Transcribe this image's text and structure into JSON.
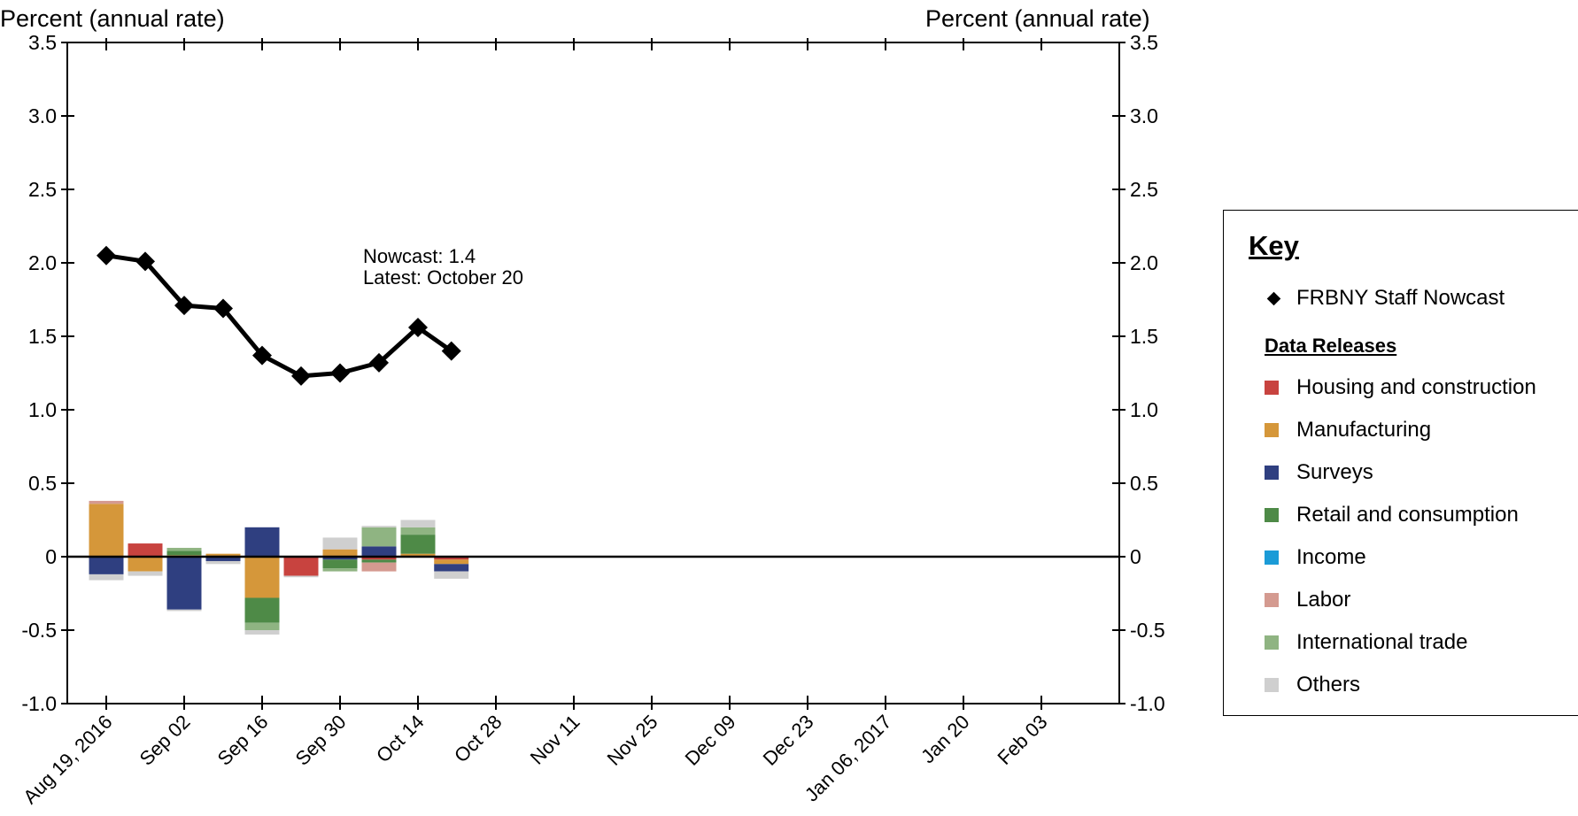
{
  "chart_data": {
    "type": "bar",
    "left_axis_title": "Percent (annual rate)",
    "right_axis_title": "Percent (annual rate)",
    "ylim": [
      -1.0,
      3.5
    ],
    "yticks": [
      -1.0,
      -0.5,
      0,
      0.5,
      1.0,
      1.5,
      2.0,
      2.5,
      3.0,
      3.5
    ],
    "ytick_labels": [
      "-1.0",
      "-0.5",
      "0",
      "0.5",
      "1.0",
      "1.5",
      "2.0",
      "2.5",
      "3.0",
      "3.5"
    ],
    "x_start": "2016-08-12",
    "x_end": "2017-02-17",
    "xticks": [
      "2016-08-19",
      "2016-09-02",
      "2016-09-16",
      "2016-09-30",
      "2016-10-14",
      "2016-10-28",
      "2016-11-11",
      "2016-11-25",
      "2016-12-09",
      "2016-12-23",
      "2017-01-06",
      "2017-01-20",
      "2017-02-03"
    ],
    "xtick_labels": [
      "Aug 19, 2016",
      "Sep 02",
      "Sep 16",
      "Sep 30",
      "Oct 14",
      "Oct 28",
      "Nov 11",
      "Nov 25",
      "Dec 09",
      "Dec 23",
      "Jan 06, 2017",
      "Jan 20",
      "Feb 03"
    ],
    "nowcast": {
      "name": "FRBNY Staff Nowcast",
      "color": "#000000",
      "points": [
        {
          "date": "2016-08-19",
          "value": 2.05
        },
        {
          "date": "2016-08-26",
          "value": 2.01
        },
        {
          "date": "2016-09-02",
          "value": 1.71
        },
        {
          "date": "2016-09-09",
          "value": 1.69
        },
        {
          "date": "2016-09-16",
          "value": 1.37
        },
        {
          "date": "2016-09-23",
          "value": 1.23
        },
        {
          "date": "2016-09-30",
          "value": 1.25
        },
        {
          "date": "2016-10-07",
          "value": 1.32
        },
        {
          "date": "2016-10-14",
          "value": 1.56
        },
        {
          "date": "2016-10-20",
          "value": 1.4
        }
      ]
    },
    "categories": [
      "Housing and construction",
      "Manufacturing",
      "Surveys",
      "Retail and consumption",
      "Income",
      "Labor",
      "International trade",
      "Others"
    ],
    "colors": [
      "#c8433f",
      "#d5973a",
      "#2f3f80",
      "#4e8a47",
      "#1b9bd7",
      "#d49a90",
      "#8fb482",
      "#cfcfcf"
    ],
    "bars": [
      {
        "date": "2016-08-19",
        "values": [
          0.0,
          0.36,
          -0.12,
          0.0,
          0.0,
          0.02,
          0.0,
          -0.04
        ]
      },
      {
        "date": "2016-08-26",
        "values": [
          0.09,
          -0.1,
          0.0,
          0.0,
          0.0,
          0.0,
          0.0,
          -0.03
        ]
      },
      {
        "date": "2016-09-02",
        "values": [
          0.0,
          0.01,
          -0.36,
          0.03,
          0.0,
          0.0,
          0.02,
          -0.01
        ]
      },
      {
        "date": "2016-09-09",
        "values": [
          0.0,
          0.02,
          -0.03,
          0.0,
          0.0,
          0.0,
          0.0,
          -0.02
        ]
      },
      {
        "date": "2016-09-16",
        "values": [
          0.0,
          -0.28,
          0.2,
          -0.17,
          0.0,
          0.0,
          -0.05,
          -0.03
        ]
      },
      {
        "date": "2016-09-23",
        "values": [
          -0.13,
          0.0,
          0.0,
          0.0,
          0.0,
          0.0,
          0.0,
          -0.01
        ]
      },
      {
        "date": "2016-09-30",
        "values": [
          0.0,
          0.05,
          -0.02,
          -0.06,
          0.0,
          0.0,
          -0.02,
          0.08
        ]
      },
      {
        "date": "2016-10-07",
        "values": [
          -0.02,
          0.0,
          0.07,
          -0.02,
          0.0,
          -0.06,
          0.13,
          0.01
        ]
      },
      {
        "date": "2016-10-14",
        "values": [
          0.0,
          0.02,
          0.0,
          0.13,
          0.0,
          0.0,
          0.05,
          0.05
        ]
      },
      {
        "date": "2016-10-20",
        "values": [
          -0.02,
          -0.03,
          -0.05,
          0.0,
          0.0,
          0.0,
          0.0,
          -0.05
        ]
      }
    ],
    "annotation": [
      "Nowcast:  1.4",
      "Latest: October 20"
    ],
    "legend_placement": "right",
    "grid": false
  },
  "legend": {
    "title": "Key",
    "nowcast_label": "FRBNY Staff Nowcast",
    "subtitle": "Data Releases",
    "items": [
      "Housing and construction",
      "Manufacturing",
      "Surveys",
      "Retail and consumption",
      "Income",
      "Labor",
      "International trade",
      "Others"
    ]
  }
}
